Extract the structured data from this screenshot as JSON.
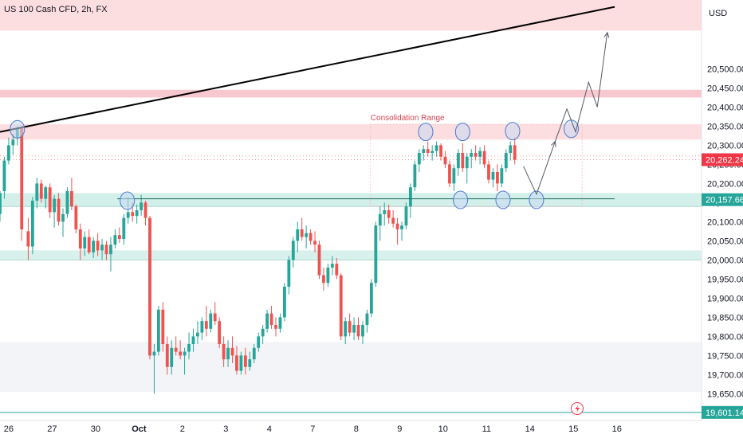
{
  "chart_data": {
    "type": "candlestick",
    "title": "US 100 Cash CFD, 2h, FX",
    "currency": "USD",
    "y_range": [
      19580,
      20680
    ],
    "y_ticks": [
      19650,
      19700,
      19750,
      19800,
      19850,
      19900,
      19950,
      20000,
      20050,
      20100,
      20150,
      20200,
      20250,
      20300,
      20350,
      20400,
      20450,
      20500
    ],
    "y_tick_labels": [
      "19,650.00",
      "19,700.00",
      "19,750.00",
      "19,800.00",
      "19,850.00",
      "19,900.00",
      "19,950.00",
      "20,000.00",
      "20,050.00",
      "20,100.00",
      "20,150.00",
      "20,200.00",
      "20,250.00",
      "20,300.00",
      "20,350.00",
      "20,400.00",
      "20,450.00",
      "20,500.00"
    ],
    "x_range": [
      -0.2,
      15.95
    ],
    "x_ticks": [
      {
        "x": 0,
        "label": "26"
      },
      {
        "x": 1,
        "label": "27"
      },
      {
        "x": 2,
        "label": "30"
      },
      {
        "x": 3,
        "label": "Oct"
      },
      {
        "x": 4,
        "label": "2"
      },
      {
        "x": 5,
        "label": "3"
      },
      {
        "x": 6,
        "label": "4"
      },
      {
        "x": 7,
        "label": "7"
      },
      {
        "x": 8,
        "label": "8"
      },
      {
        "x": 9,
        "label": "9"
      },
      {
        "x": 10,
        "label": "10"
      },
      {
        "x": 11,
        "label": "11"
      },
      {
        "x": 12,
        "label": "14"
      },
      {
        "x": 13,
        "label": "15"
      },
      {
        "x": 14,
        "label": "16"
      }
    ],
    "price_labels": [
      {
        "name": "last-price",
        "value": 20262.24,
        "label": "20,262.24",
        "color": "#f23645"
      },
      {
        "name": "support-level",
        "value": 20157.66,
        "label": "20,157.66",
        "color": "#26a69a"
      },
      {
        "name": "lower-level",
        "value": 19601.14,
        "label": "19,601.14",
        "color": "#26a69a"
      }
    ],
    "zones": [
      {
        "name": "resistance-zone-top",
        "y_from": 20600,
        "y_to": 20680,
        "color": "#fcdde0"
      },
      {
        "name": "resistance-zone-2",
        "y_from": 20425,
        "y_to": 20445,
        "color": "#f8c8d0"
      },
      {
        "name": "resistance-zone-1",
        "y_from": 20315,
        "y_to": 20355,
        "color": "#fcdde0"
      },
      {
        "name": "support-zone-1",
        "y_from": 20140,
        "y_to": 20175,
        "color": "#d3efea"
      },
      {
        "name": "support-zone-2",
        "y_from": 20000,
        "y_to": 20025,
        "color": "#d8f1ec"
      },
      {
        "name": "demand-zone",
        "y_from": 19655,
        "y_to": 19785,
        "color": "#f3f4f7"
      }
    ],
    "consolidation": {
      "label": "Consolidation Range",
      "x_from": 8.33,
      "x_to": 13.2,
      "y_from": 20140,
      "y_to": 20355
    },
    "trendline": {
      "x1": -0.2,
      "y1": 20335,
      "x2": 13.95,
      "y2": 20662
    },
    "support_line": {
      "x1": 2.5,
      "x2": 13.95,
      "y": 20160
    },
    "circles": [
      {
        "x": 0.2,
        "y": 20342
      },
      {
        "x": 2.73,
        "y": 20155
      },
      {
        "x": 9.6,
        "y": 20335
      },
      {
        "x": 10.45,
        "y": 20335
      },
      {
        "x": 11.6,
        "y": 20337
      },
      {
        "x": 12.95,
        "y": 20343
      },
      {
        "x": 10.4,
        "y": 20157
      },
      {
        "x": 11.38,
        "y": 20157
      },
      {
        "x": 12.15,
        "y": 20157
      }
    ],
    "projection_path": [
      {
        "x": 11.85,
        "y": 20245
      },
      {
        "x": 12.15,
        "y": 20172
      },
      {
        "x": 12.58,
        "y": 20310
      },
      {
        "x": 12.85,
        "y": 20395
      },
      {
        "x": 13.05,
        "y": 20335
      },
      {
        "x": 13.35,
        "y": 20465
      },
      {
        "x": 13.55,
        "y": 20400
      },
      {
        "x": 13.78,
        "y": 20595
      }
    ],
    "dashed_lines": [
      {
        "name": "last-price-dotted",
        "y": 20262
      },
      {
        "name": "pivot-dotted",
        "y": 20272
      }
    ],
    "candles": [
      [
        -0.2,
        20120,
        20180,
        20100,
        20175
      ],
      [
        -0.1,
        20180,
        20270,
        20160,
        20260
      ],
      [
        0.0,
        20260,
        20320,
        20250,
        20300
      ],
      [
        0.1,
        20300,
        20330,
        20275,
        20315
      ],
      [
        0.2,
        20320,
        20350,
        20300,
        20345
      ],
      [
        0.3,
        20345,
        20350,
        20050,
        20080
      ],
      [
        0.45,
        20075,
        20110,
        20000,
        20035
      ],
      [
        0.55,
        20035,
        20165,
        20015,
        20155
      ],
      [
        0.65,
        20155,
        20215,
        20135,
        20200
      ],
      [
        0.75,
        20200,
        20210,
        20150,
        20160
      ],
      [
        0.85,
        20160,
        20195,
        20135,
        20190
      ],
      [
        0.95,
        20190,
        20200,
        20110,
        20125
      ],
      [
        1.05,
        20125,
        20170,
        20085,
        20160
      ],
      [
        1.15,
        20160,
        20175,
        20090,
        20100
      ],
      [
        1.25,
        20100,
        20135,
        20060,
        20120
      ],
      [
        1.35,
        20120,
        20190,
        20110,
        20180
      ],
      [
        1.45,
        20180,
        20215,
        20130,
        20140
      ],
      [
        1.55,
        20140,
        20145,
        20070,
        20080
      ],
      [
        1.65,
        20080,
        20095,
        20000,
        20030
      ],
      [
        1.75,
        20030,
        20075,
        20010,
        20060
      ],
      [
        1.85,
        20060,
        20080,
        20015,
        20020
      ],
      [
        1.95,
        20020,
        20060,
        20005,
        20050
      ],
      [
        2.05,
        20050,
        20070,
        20010,
        20025
      ],
      [
        2.15,
        20025,
        20055,
        20000,
        20040
      ],
      [
        2.25,
        20040,
        20050,
        20000,
        20015
      ],
      [
        2.35,
        20015,
        20060,
        19970,
        20040
      ],
      [
        2.45,
        20040,
        20080,
        20030,
        20065
      ],
      [
        2.55,
        20065,
        20085,
        20045,
        20055
      ],
      [
        2.65,
        20055,
        20120,
        20040,
        20110
      ],
      [
        2.75,
        20110,
        20165,
        20095,
        20125
      ],
      [
        2.85,
        20125,
        20150,
        20100,
        20115
      ],
      [
        2.95,
        20115,
        20145,
        20095,
        20130
      ],
      [
        3.05,
        20130,
        20170,
        20115,
        20150
      ],
      [
        3.15,
        20150,
        20155,
        20090,
        20110
      ],
      [
        3.25,
        20110,
        20115,
        19740,
        19750
      ],
      [
        3.35,
        19750,
        19780,
        19650,
        19760
      ],
      [
        3.45,
        19760,
        19880,
        19750,
        19870
      ],
      [
        3.55,
        19870,
        19890,
        19760,
        19780
      ],
      [
        3.65,
        19780,
        19800,
        19700,
        19720
      ],
      [
        3.75,
        19720,
        19790,
        19700,
        19770
      ],
      [
        3.85,
        19770,
        19800,
        19750,
        19760
      ],
      [
        3.95,
        19760,
        19790,
        19740,
        19750
      ],
      [
        4.05,
        19750,
        19770,
        19700,
        19760
      ],
      [
        4.15,
        19760,
        19810,
        19740,
        19780
      ],
      [
        4.25,
        19780,
        19820,
        19760,
        19800
      ],
      [
        4.35,
        19800,
        19840,
        19780,
        19810
      ],
      [
        4.45,
        19810,
        19850,
        19790,
        19840
      ],
      [
        4.55,
        19840,
        19880,
        19800,
        19820
      ],
      [
        4.65,
        19820,
        19870,
        19810,
        19860
      ],
      [
        4.75,
        19860,
        19890,
        19830,
        19840
      ],
      [
        4.85,
        19840,
        19850,
        19770,
        19780
      ],
      [
        4.95,
        19780,
        19800,
        19720,
        19740
      ],
      [
        5.05,
        19740,
        19790,
        19720,
        19770
      ],
      [
        5.15,
        19770,
        19800,
        19730,
        19750
      ],
      [
        5.25,
        19750,
        19775,
        19700,
        19710
      ],
      [
        5.35,
        19710,
        19760,
        19700,
        19750
      ],
      [
        5.45,
        19750,
        19770,
        19700,
        19720
      ],
      [
        5.55,
        19720,
        19760,
        19710,
        19740
      ],
      [
        5.65,
        19740,
        19780,
        19730,
        19770
      ],
      [
        5.75,
        19770,
        19810,
        19760,
        19800
      ],
      [
        5.85,
        19800,
        19830,
        19780,
        19820
      ],
      [
        5.95,
        19820,
        19870,
        19810,
        19860
      ],
      [
        6.05,
        19860,
        19880,
        19820,
        19830
      ],
      [
        6.15,
        19830,
        19850,
        19800,
        19820
      ],
      [
        6.25,
        19820,
        19860,
        19810,
        19850
      ],
      [
        6.35,
        19850,
        19940,
        19840,
        19930
      ],
      [
        6.45,
        19930,
        20010,
        19910,
        20000
      ],
      [
        6.55,
        20000,
        20060,
        19980,
        20050
      ],
      [
        6.65,
        20050,
        20100,
        20020,
        20080
      ],
      [
        6.75,
        20080,
        20110,
        20050,
        20060
      ],
      [
        6.85,
        20060,
        20090,
        20030,
        20070
      ],
      [
        6.95,
        20070,
        20080,
        20040,
        20050
      ],
      [
        7.05,
        20050,
        20075,
        20020,
        20040
      ],
      [
        7.15,
        20040,
        20050,
        19950,
        19960
      ],
      [
        7.25,
        19960,
        19980,
        19920,
        19940
      ],
      [
        7.35,
        19940,
        19990,
        19930,
        19980
      ],
      [
        7.45,
        19980,
        20010,
        19960,
        19990
      ],
      [
        7.55,
        19990,
        20005,
        19950,
        19960
      ],
      [
        7.65,
        19960,
        19965,
        19790,
        19800
      ],
      [
        7.75,
        19800,
        19850,
        19780,
        19840
      ],
      [
        7.85,
        19840,
        19860,
        19800,
        19810
      ],
      [
        7.95,
        19810,
        19850,
        19790,
        19830
      ],
      [
        8.05,
        19830,
        19850,
        19790,
        19800
      ],
      [
        8.15,
        19800,
        19840,
        19780,
        19830
      ],
      [
        8.25,
        19830,
        19870,
        19810,
        19860
      ],
      [
        8.35,
        19860,
        19950,
        19850,
        19940
      ],
      [
        8.45,
        19940,
        20100,
        19930,
        20090
      ],
      [
        8.55,
        20090,
        20140,
        20050,
        20120
      ],
      [
        8.65,
        20120,
        20150,
        20090,
        20130
      ],
      [
        8.75,
        20130,
        20145,
        20095,
        20110
      ],
      [
        8.85,
        20110,
        20130,
        20085,
        20095
      ],
      [
        8.95,
        20095,
        20110,
        20040,
        20080
      ],
      [
        9.05,
        20080,
        20100,
        20050,
        20090
      ],
      [
        9.15,
        20090,
        20150,
        20080,
        20140
      ],
      [
        9.25,
        20140,
        20200,
        20110,
        20190
      ],
      [
        9.35,
        20190,
        20260,
        20180,
        20250
      ],
      [
        9.45,
        20250,
        20290,
        20230,
        20280
      ],
      [
        9.55,
        20280,
        20300,
        20260,
        20290
      ],
      [
        9.65,
        20290,
        20310,
        20270,
        20280
      ],
      [
        9.75,
        20280,
        20300,
        20260,
        20285
      ],
      [
        9.85,
        20285,
        20310,
        20270,
        20300
      ],
      [
        9.95,
        20300,
        20305,
        20260,
        20270
      ],
      [
        10.05,
        20270,
        20285,
        20240,
        20250
      ],
      [
        10.15,
        20250,
        20260,
        20190,
        20200
      ],
      [
        10.25,
        20200,
        20250,
        20180,
        20240
      ],
      [
        10.35,
        20240,
        20290,
        20220,
        20280
      ],
      [
        10.45,
        20280,
        20305,
        20230,
        20240
      ],
      [
        10.55,
        20240,
        20280,
        20200,
        20270
      ],
      [
        10.65,
        20270,
        20290,
        20240,
        20280
      ],
      [
        10.75,
        20280,
        20300,
        20260,
        20270
      ],
      [
        10.85,
        20270,
        20295,
        20250,
        20285
      ],
      [
        10.95,
        20285,
        20300,
        20240,
        20250
      ],
      [
        11.05,
        20250,
        20260,
        20200,
        20210
      ],
      [
        11.15,
        20210,
        20240,
        20190,
        20230
      ],
      [
        11.25,
        20230,
        20250,
        20180,
        20200
      ],
      [
        11.35,
        20200,
        20250,
        20190,
        20240
      ],
      [
        11.45,
        20240,
        20290,
        20230,
        20280
      ],
      [
        11.55,
        20280,
        20310,
        20260,
        20300
      ],
      [
        11.65,
        20300,
        20320,
        20250,
        20262
      ]
    ]
  }
}
